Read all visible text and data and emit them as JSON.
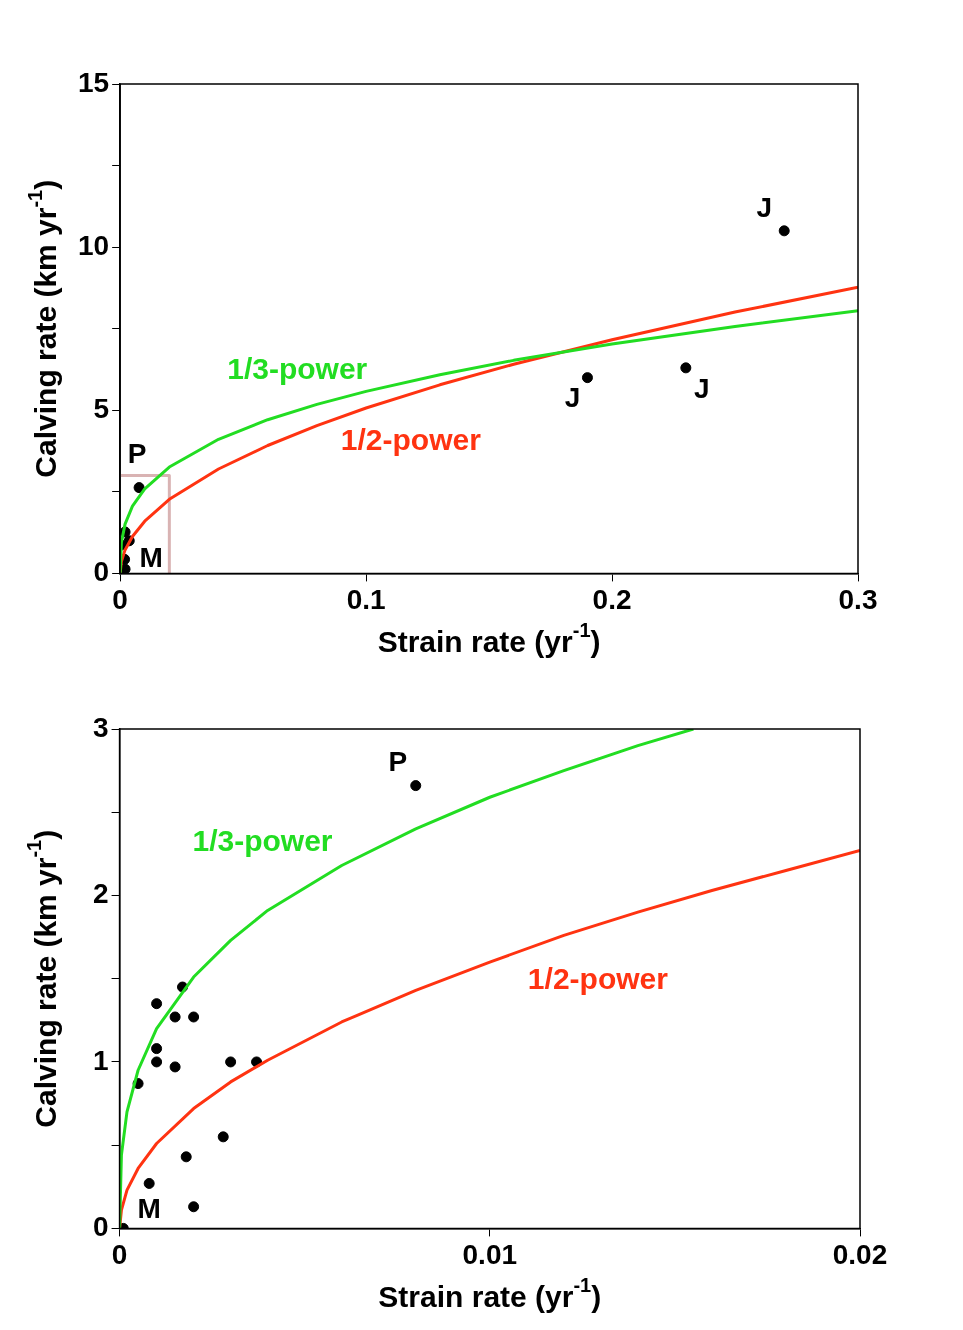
{
  "chart_data": [
    {
      "type": "scatter",
      "xlabel": "Strain rate (yr$^{-1}$)",
      "ylabel": "Calving rate (km yr$^{-1}$)",
      "xlim": [
        0,
        0.3
      ],
      "ylim": [
        0,
        15
      ],
      "xticks": [
        0,
        0.1,
        0.2,
        0.3
      ],
      "yticks": [
        0,
        {
          "value": 2.5,
          "label": null
        },
        5,
        {
          "value": 7.5,
          "label": null
        },
        10,
        {
          "value": 12.5,
          "label": null
        },
        15
      ],
      "series": [
        {
          "type": "line",
          "name": "1/3-power",
          "color": "#22dd22",
          "marker": "none",
          "x": [
            0,
            0.0005,
            0.002,
            0.005,
            0.01,
            0.02,
            0.04,
            0.06,
            0.08,
            0.1,
            0.13,
            0.16,
            0.2,
            0.25,
            0.3
          ],
          "values": [
            0,
            0.95,
            1.51,
            2.06,
            2.59,
            3.26,
            4.11,
            4.71,
            5.18,
            5.58,
            6.09,
            6.53,
            7.03,
            7.57,
            8.05
          ]
        },
        {
          "type": "line",
          "name": "1/2-power",
          "color": "#ff3311",
          "marker": "none",
          "x": [
            0,
            0.0005,
            0.002,
            0.005,
            0.01,
            0.02,
            0.04,
            0.06,
            0.08,
            0.1,
            0.13,
            0.16,
            0.2,
            0.25,
            0.3
          ],
          "values": [
            0,
            0.36,
            0.72,
            1.13,
            1.6,
            2.27,
            3.2,
            3.92,
            4.53,
            5.07,
            5.78,
            6.41,
            7.16,
            8.01,
            8.77
          ]
        },
        {
          "type": "line",
          "color": "#d9b3b3",
          "marker": "none",
          "x": [
            0,
            0.02,
            0.02
          ],
          "values": [
            3,
            3,
            0
          ]
        },
        {
          "type": "scatter",
          "color": "#000000",
          "marker": "circle",
          "x": [
            0.002,
            0.0037,
            0.0005,
            0.0018,
            0.002,
            0.0077,
            0.19,
            0.23,
            0.27
          ],
          "values": [
            1.27,
            1.0,
            0.87,
            0.43,
            0.13,
            2.63,
            6.0,
            6.3,
            10.5
          ]
        }
      ],
      "annotations": [
        {
          "text": "J",
          "x": 0.27,
          "y": 10.5
        },
        {
          "text": "J",
          "x": 0.19,
          "y": 6.0
        },
        {
          "text": "J",
          "x": 0.23,
          "y": 6.3
        },
        {
          "text": "P",
          "x": 0.0077,
          "y": 2.63
        },
        {
          "text": "M",
          "x": 0.002,
          "y": 0.13
        }
      ]
    },
    {
      "type": "scatter",
      "xlabel": "Strain rate (yr$^{-1}$)",
      "ylabel": "Calving rate (km yr$^{-1}$)",
      "xlim": [
        0,
        0.02
      ],
      "ylim": [
        0,
        3
      ],
      "xticks": [
        0,
        0.01,
        0.02
      ],
      "yticks": [
        0,
        {
          "value": 0.5,
          "label": null
        },
        1,
        {
          "value": 1.5,
          "label": null
        },
        2,
        {
          "value": 2.5,
          "label": null
        },
        3
      ],
      "series": [
        {
          "type": "line",
          "name": "1/3-power",
          "color": "#22dd22",
          "marker": "none",
          "x": [
            0,
            5e-05,
            0.0002,
            0.0005,
            0.001,
            0.002,
            0.003,
            0.004,
            0.006,
            0.008,
            0.01,
            0.012,
            0.014,
            0.0155
          ],
          "values": [
            0,
            0.44,
            0.7,
            0.95,
            1.2,
            1.51,
            1.73,
            1.91,
            2.18,
            2.4,
            2.59,
            2.75,
            2.9,
            3.0
          ]
        },
        {
          "type": "line",
          "name": "1/2-power",
          "color": "#ff3311",
          "marker": "none",
          "x": [
            0,
            5e-05,
            0.0002,
            0.0005,
            0.001,
            0.002,
            0.003,
            0.004,
            0.006,
            0.008,
            0.01,
            0.012,
            0.014,
            0.016,
            0.018,
            0.02
          ],
          "values": [
            0,
            0.11,
            0.23,
            0.36,
            0.51,
            0.72,
            0.88,
            1.01,
            1.24,
            1.43,
            1.6,
            1.76,
            1.9,
            2.03,
            2.15,
            2.27
          ]
        },
        {
          "type": "scatter",
          "color": "#000000",
          "marker": "circle",
          "x": [
            0.0017,
            0.001,
            0.0015,
            0.002,
            0.001,
            0.001,
            0.0015,
            0.003,
            0.0037,
            0.0005,
            0.0028,
            0.0018,
            0.0008,
            0.002,
            0.0001,
            0.008
          ],
          "values": [
            1.45,
            1.35,
            1.27,
            1.27,
            1.08,
            1.0,
            0.97,
            1.0,
            1.0,
            0.87,
            0.55,
            0.43,
            0.27,
            0.13,
            0.0,
            2.66
          ]
        }
      ],
      "annotations": [
        {
          "text": "P",
          "x": 0.008,
          "y": 2.66
        },
        {
          "text": "M",
          "x": 0.0001,
          "y": 0.0
        }
      ]
    }
  ]
}
